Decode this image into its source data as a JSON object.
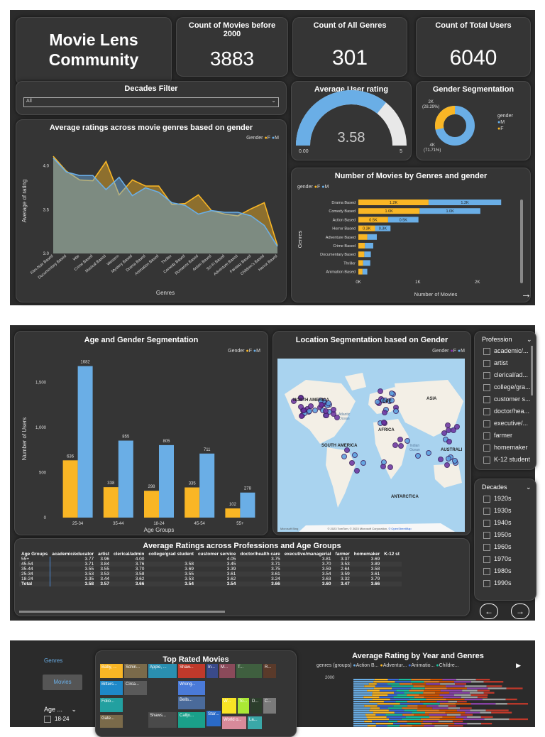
{
  "page1": {
    "title_line1": "Movie Lens",
    "title_line2": "Community",
    "kpis": [
      {
        "label": "Count of Movies before 2000",
        "value": "3883"
      },
      {
        "label": "Count of All Genres",
        "value": "301"
      },
      {
        "label": "Count of Total Users",
        "value": "6040"
      }
    ],
    "decades_filter": {
      "title": "Decades Filter",
      "value": "All"
    },
    "gauge": {
      "title": "Average User rating",
      "value": "3.58",
      "min": "0.00",
      "max": "5",
      "fraction": 0.716
    },
    "gender_seg": {
      "title": "Gender Segmentation",
      "legend_title": "gender",
      "legend": [
        "M",
        "F"
      ],
      "label_f": "2K",
      "label_f_pct": "(28.29%)",
      "label_m": "4K",
      "label_m_pct": "(71.71%)",
      "f_fraction": 0.2829,
      "colors": {
        "F": "#f9b625",
        "M": "#6aaee6"
      }
    },
    "avg_ratings_chart": {
      "title": "Average ratings across movie genres based on gender",
      "legend_title": "Gender",
      "legend": [
        "F",
        "M"
      ],
      "ylabel": "Average of rating",
      "xlabel": "Genres"
    },
    "movies_by_genre": {
      "title": "Number of Movies by Genres and gender",
      "legend_title": "gender",
      "legend": [
        "F",
        "M"
      ],
      "ylabel": "Genres",
      "xlabel": "Number of Movies"
    }
  },
  "page2": {
    "age_gender": {
      "title": "Age and Gender Segmentation",
      "legend_title": "Gender",
      "legend": [
        "F",
        "M"
      ],
      "ylabel": "Number of Users",
      "xlabel": "Age Groups"
    },
    "location": {
      "title": "Location Segmentation based on Gender",
      "legend_title": "Gender",
      "legend": [
        "F",
        "M"
      ],
      "labels": {
        "na": "NORTH AMERICA",
        "sa": "SOUTH AMERICA",
        "eu": "OPE",
        "af": "AFRICA",
        "as": "ASIA",
        "au": "AUSTRALI",
        "an": "ANTARCTICA",
        "atl": "Atlantic",
        "ocean": "Ocean",
        "ind": "Indian",
        "ocean2": "Ocean"
      },
      "attribution_left": "Microsoft Bing",
      "attribution": "© 2023 TomTom, © 2023 Microsoft Corporation,",
      "osm": "© OpenStreetMap"
    },
    "profession_slicer": {
      "title": "Profession",
      "items": [
        "academic/...",
        "artist",
        "clerical/ad...",
        "college/gra...",
        "customer s...",
        "doctor/hea...",
        "executive/...",
        "farmer",
        "homemaker",
        "K-12 student"
      ]
    },
    "decades_slicer": {
      "title": "Decades",
      "items": [
        "1920s",
        "1930s",
        "1940s",
        "1950s",
        "1960s",
        "1970s",
        "1980s",
        "1990s"
      ]
    },
    "matrix": {
      "title": "Average Ratings across Professions and Age Groups",
      "headers": [
        "Age Groups",
        "academic/educator",
        "artist",
        "clerical/admin",
        "college/grad student",
        "customer service",
        "doctor/health care",
        "executive/managerial",
        "farmer",
        "homemaker",
        "K-12 st"
      ],
      "rows": [
        [
          "55+",
          "3.77",
          "3.96",
          "4.00",
          "",
          "4.05",
          "3.75",
          "3.81",
          "3.37",
          "3.69",
          ""
        ],
        [
          "45-54",
          "3.71",
          "3.84",
          "3.76",
          "3.58",
          "3.45",
          "3.71",
          "3.70",
          "3.53",
          "3.89",
          ""
        ],
        [
          "35-44",
          "3.55",
          "3.55",
          "3.70",
          "3.69",
          "3.39",
          "3.75",
          "3.59",
          "2.64",
          "3.58",
          ""
        ],
        [
          "25-34",
          "3.53",
          "3.53",
          "3.58",
          "3.55",
          "3.61",
          "3.61",
          "3.54",
          "3.59",
          "3.61",
          ""
        ],
        [
          "18-24",
          "3.35",
          "3.44",
          "3.62",
          "3.53",
          "3.62",
          "3.24",
          "3.63",
          "3.32",
          "3.79",
          ""
        ],
        [
          "Total",
          "3.58",
          "3.57",
          "3.66",
          "3.54",
          "3.54",
          "3.66",
          "3.60",
          "3.47",
          "3.66",
          ""
        ]
      ]
    }
  },
  "page3": {
    "nav_genres": "Genres",
    "nav_movies": "Movies",
    "age_slicer_title": "Age ...",
    "age_slicer_item": "18-24",
    "treemap": {
      "title": "Top Rated Movies",
      "tiles": [
        {
          "label": "Baby, ...",
          "color": "#f9b625"
        },
        {
          "label": "Schin...",
          "color": "#7a6a4a"
        },
        {
          "label": "Apple, ...",
          "color": "#2a8fb0"
        },
        {
          "label": "Shaw...",
          "color": "#c0392b"
        },
        {
          "label": "In...",
          "color": "#3a4a8a"
        },
        {
          "label": "M...",
          "color": "#8a4a5a"
        },
        {
          "label": "T...",
          "color": "#3f5f3f"
        },
        {
          "label": "R...",
          "color": "#5a3a2a"
        },
        {
          "label": "Bitters...",
          "color": "#1e88c8"
        },
        {
          "label": "Circa...",
          "color": "#5a5a5a"
        },
        {
          "label": "Wrong...",
          "color": "#4a7ad8"
        },
        {
          "label": "Folio...",
          "color": "#22a0a0"
        },
        {
          "label": "Bells...",
          "color": "#4a6a9a"
        },
        {
          "label": "W...",
          "color": "#f9e425"
        },
        {
          "label": "To...",
          "color": "#aae835"
        },
        {
          "label": "D...",
          "color": "#2c3e2c"
        },
        {
          "label": "C...",
          "color": "#7a7a7a"
        },
        {
          "label": "Gate...",
          "color": "#7a6a4a"
        },
        {
          "label": "Shaws...",
          "color": "#4a4a4a"
        },
        {
          "label": "Calljo...",
          "color": "#1aa08a"
        },
        {
          "label": "Star...",
          "color": "#2a6ac8"
        },
        {
          "label": "World o...",
          "color": "#d88a9a"
        },
        {
          "label": "La...",
          "color": "#3aa8a8"
        }
      ]
    },
    "year_genres": {
      "title": "Average Rating by Year and Genres",
      "legend_title": "genres (groups)",
      "legend": [
        "Action B...",
        "Adventur...",
        "Animatio...",
        "Childre..."
      ],
      "legend_colors": [
        "#6aaee6",
        "#f9b625",
        "#3a6ad8",
        "#1abc9c"
      ],
      "year_label": "2000"
    }
  },
  "chart_data": [
    {
      "type": "area",
      "title": "Average ratings across movie genres based on gender",
      "xlabel": "Genres",
      "ylabel": "Average of rating",
      "ylim": [
        3.0,
        4.2
      ],
      "yticks": [
        "3.0",
        "3.5",
        "4.0"
      ],
      "categories": [
        "Film-Noir Based",
        "Documentary Based",
        "War",
        "Crime Based",
        "Musical Based",
        "Western",
        "Mystery Based",
        "Drama Based",
        "Animation Based",
        "Thriller",
        "Comedy Based",
        "Romance Based",
        "Action Based",
        "Sci-Fi Based",
        "Adventure Based",
        "Fantasy Based",
        "Children's Based",
        "Horror Based"
      ],
      "series": [
        {
          "name": "F",
          "values": [
            4.11,
            3.94,
            3.84,
            3.83,
            4.05,
            3.67,
            3.84,
            3.77,
            3.77,
            3.56,
            3.57,
            3.67,
            3.49,
            3.45,
            3.43,
            3.51,
            3.58,
            3.09
          ]
        },
        {
          "name": "M",
          "values": [
            4.09,
            3.93,
            3.89,
            3.89,
            3.73,
            3.87,
            3.66,
            3.75,
            3.7,
            3.58,
            3.55,
            3.45,
            3.49,
            3.47,
            3.47,
            3.43,
            3.32,
            3.08
          ]
        }
      ]
    },
    {
      "type": "bar",
      "orientation": "horizontal",
      "stacked": true,
      "title": "Number of Movies by Genres and gender",
      "xlabel": "Number of Movies",
      "ylabel": "Genres",
      "xlim": [
        0,
        2600
      ],
      "xticks": [
        "0K",
        "1K",
        "2K"
      ],
      "categories": [
        "Drama Based",
        "Comedy Based",
        "Action Based",
        "Horror Based",
        "Adventure Based",
        "Crime Based",
        "Documentary Based",
        "Thriller",
        "Animation Based"
      ],
      "series": [
        {
          "name": "F",
          "values": [
            1180,
            1030,
            500,
            280,
            150,
            110,
            100,
            80,
            70
          ]
        },
        {
          "name": "M",
          "values": [
            1220,
            1020,
            510,
            260,
            160,
            140,
            110,
            120,
            80
          ]
        }
      ],
      "data_labels": {
        "F": [
          "1.2K",
          "1.0K",
          "0.5K",
          "0.3K",
          "",
          "",
          "",
          "",
          ""
        ],
        "M": [
          "1.2K",
          "1.0K",
          "0.5K",
          "0.3K",
          "",
          "",
          "",
          "",
          ""
        ]
      }
    },
    {
      "type": "bar",
      "title": "Age and Gender Segmentation",
      "xlabel": "Age Groups",
      "ylabel": "Number of Users",
      "ylim": [
        0,
        1750
      ],
      "yticks": [
        0,
        500,
        1000,
        1500
      ],
      "ytick_labels": [
        "0",
        "500",
        "1,000",
        "1,500"
      ],
      "categories": [
        "25-34",
        "35-44",
        "18-24",
        "45-54",
        "55+"
      ],
      "series": [
        {
          "name": "F",
          "values": [
            636,
            338,
            298,
            335,
            102
          ]
        },
        {
          "name": "M",
          "values": [
            1682,
            855,
            805,
            711,
            278
          ]
        }
      ]
    },
    {
      "type": "pie",
      "title": "Gender Segmentation",
      "categories": [
        "F",
        "M"
      ],
      "values": [
        28.29,
        71.71
      ]
    }
  ]
}
